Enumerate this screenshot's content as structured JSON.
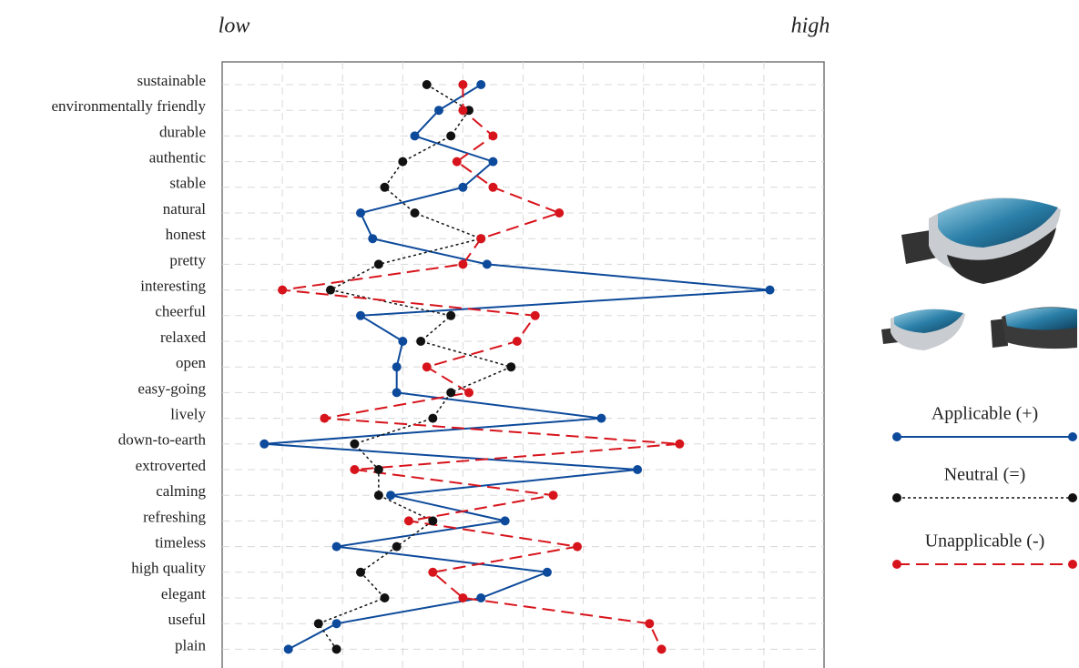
{
  "chart_data": {
    "type": "profile",
    "annotations": [
      "low",
      "high"
    ],
    "categories": [
      "sustainable",
      "environmentally friendly",
      "durable",
      "authentic",
      "stable",
      "natural",
      "honest",
      "pretty",
      "interesting",
      "cheerful",
      "relaxed",
      "open",
      "easy-going",
      "lively",
      "down-to-earth",
      "extroverted",
      "calming",
      "refreshing",
      "timeless",
      "high quality",
      "elegant",
      "useful",
      "plain"
    ],
    "xlim": [
      0,
      10
    ],
    "xticks": [
      1,
      2,
      3,
      4,
      5,
      6,
      7,
      8,
      9
    ],
    "grid": true,
    "legend": "right",
    "series": [
      {
        "name": "Applicable (+)",
        "color": "#0d4a9b",
        "style": "solid",
        "values": [
          4.3,
          3.6,
          3.2,
          4.5,
          4.0,
          2.3,
          2.5,
          4.4,
          9.1,
          2.3,
          3.0,
          2.9,
          2.9,
          6.3,
          0.7,
          6.9,
          2.8,
          4.7,
          1.9,
          5.4,
          4.3,
          1.9,
          1.1
        ]
      },
      {
        "name": "Neutral (=)",
        "color": "#111111",
        "style": "dotted",
        "values": [
          3.4,
          4.1,
          3.8,
          3.0,
          2.7,
          3.2,
          4.3,
          2.6,
          1.8,
          3.8,
          3.3,
          4.8,
          3.8,
          3.5,
          2.2,
          2.6,
          2.6,
          3.5,
          2.9,
          2.3,
          2.7,
          1.6,
          1.9
        ]
      },
      {
        "name": "Unapplicable (-)",
        "color": "#d7141c",
        "style": "dashed",
        "values": [
          4.0,
          4.0,
          4.5,
          3.9,
          4.5,
          5.6,
          4.3,
          4.0,
          1.0,
          5.2,
          4.9,
          3.4,
          4.1,
          1.7,
          7.6,
          2.2,
          5.5,
          3.1,
          5.9,
          3.5,
          4.0,
          7.1,
          7.3
        ]
      }
    ]
  }
}
